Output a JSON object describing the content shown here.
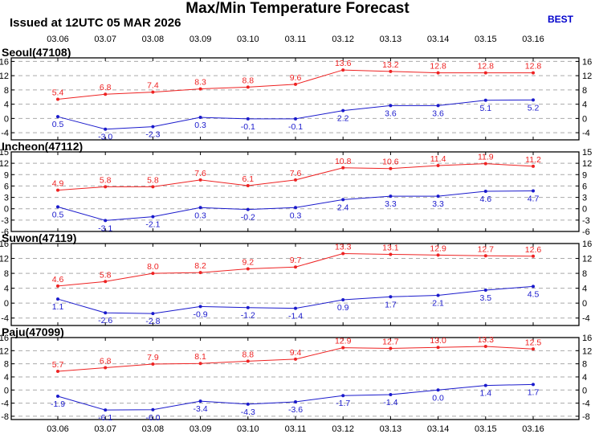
{
  "header": {
    "title": "Max/Min Temperature Forecast",
    "issued": "Issued at 12UTC 05 MAR 2026",
    "model": "BEST"
  },
  "colors": {
    "max": "#ee2222",
    "min": "#1a1acc",
    "grid": "#aaaaaa"
  },
  "chart_data": [
    {
      "type": "line",
      "title": "Seoul(47108)",
      "categories": [
        "03.06",
        "03.07",
        "03.08",
        "03.09",
        "03.10",
        "03.11",
        "03.12",
        "03.13",
        "03.14",
        "03.15",
        "03.16"
      ],
      "ylim": [
        -6,
        17
      ],
      "yticks": [
        16,
        12,
        8,
        4,
        0,
        -4
      ],
      "ytick_labels": [
        "16",
        "12",
        "8",
        "4",
        "0",
        "-4"
      ],
      "grid": true,
      "series": [
        {
          "values": [
            5.4,
            6.8,
            7.4,
            8.3,
            8.8,
            9.6,
            13.6,
            13.2,
            12.8,
            12.8,
            12.8
          ],
          "labels": [
            "5.4",
            "6.8",
            "7.4",
            "8.3",
            "8.8",
            "9.6",
            "13.6",
            "13.2",
            "12.8",
            "12.8",
            "12.8"
          ]
        },
        {
          "values": [
            0.5,
            -3.0,
            -2.3,
            0.3,
            -0.1,
            -0.1,
            2.2,
            3.6,
            3.6,
            5.1,
            5.2
          ],
          "labels": [
            "0.5",
            "-3.0",
            "-2.3",
            "0.3",
            "-0.1",
            "-0.1",
            "2.2",
            "3.6",
            "3.6",
            "5.1",
            "5.2"
          ]
        }
      ]
    },
    {
      "type": "line",
      "title": "Incheon(47112)",
      "categories": [
        "03.06",
        "03.07",
        "03.08",
        "03.09",
        "03.10",
        "03.11",
        "03.12",
        "03.13",
        "03.14",
        "03.15",
        "03.16"
      ],
      "ylim": [
        -6,
        15
      ],
      "yticks": [
        15,
        12,
        9,
        6,
        3,
        0,
        -3,
        -6
      ],
      "ytick_labels": [
        "15",
        "12",
        "9",
        "6",
        "3",
        "0",
        "-3",
        "-6"
      ],
      "grid": true,
      "series": [
        {
          "values": [
            4.9,
            5.8,
            5.8,
            7.6,
            6.1,
            7.6,
            10.8,
            10.6,
            11.4,
            11.9,
            11.2
          ],
          "labels": [
            "4.9",
            "5.8",
            "5.8",
            "7.6",
            "6.1",
            "7.6",
            "10.8",
            "10.6",
            "11.4",
            "11.9",
            "11.2"
          ]
        },
        {
          "values": [
            0.5,
            -3.1,
            -2.1,
            0.3,
            -0.2,
            0.3,
            2.4,
            3.3,
            3.3,
            4.6,
            4.7
          ],
          "labels": [
            "0.5",
            "-3.1",
            "-2.1",
            "0.3",
            "-0.2",
            "0.3",
            "2.4",
            "3.3",
            "3.3",
            "4.6",
            "4.7"
          ]
        }
      ]
    },
    {
      "type": "line",
      "title": "Suwon(47119)",
      "categories": [
        "03.06",
        "03.07",
        "03.08",
        "03.09",
        "03.10",
        "03.11",
        "03.12",
        "03.13",
        "03.14",
        "03.15",
        "03.16"
      ],
      "ylim": [
        -6,
        16
      ],
      "yticks": [
        16,
        12,
        8,
        4,
        0,
        -4
      ],
      "ytick_labels": [
        "16",
        "12",
        "8",
        "4",
        "0",
        "-4"
      ],
      "grid": true,
      "series": [
        {
          "values": [
            4.6,
            5.8,
            8.0,
            8.2,
            9.2,
            9.7,
            13.3,
            13.1,
            12.9,
            12.7,
            12.6
          ],
          "labels": [
            "4.6",
            "5.8",
            "8.0",
            "8.2",
            "9.2",
            "9.7",
            "13.3",
            "13.1",
            "12.9",
            "12.7",
            "12.6"
          ]
        },
        {
          "values": [
            1.1,
            -2.6,
            -2.8,
            -0.9,
            -1.2,
            -1.4,
            0.9,
            1.7,
            2.1,
            3.5,
            4.5
          ],
          "labels": [
            "1.1",
            "-2.6",
            "-2.8",
            "-0.9",
            "-1.2",
            "-1.4",
            "0.9",
            "1.7",
            "2.1",
            "3.5",
            "4.5"
          ]
        }
      ]
    },
    {
      "type": "line",
      "title": "Paju(47099)",
      "categories": [
        "03.06",
        "03.07",
        "03.08",
        "03.09",
        "03.10",
        "03.11",
        "03.12",
        "03.13",
        "03.14",
        "03.15",
        "03.16"
      ],
      "ylim": [
        -9,
        16
      ],
      "yticks": [
        16,
        12,
        8,
        4,
        0,
        -4,
        -8
      ],
      "ytick_labels": [
        "16",
        "12",
        "8",
        "4",
        "0",
        "-4",
        "-8"
      ],
      "grid": true,
      "series": [
        {
          "values": [
            5.7,
            6.8,
            7.9,
            8.1,
            8.8,
            9.4,
            12.9,
            12.7,
            13.0,
            13.3,
            12.5
          ],
          "labels": [
            "5.7",
            "6.8",
            "7.9",
            "8.1",
            "8.8",
            "9.4",
            "12.9",
            "12.7",
            "13.0",
            "13.3",
            "12.5"
          ]
        },
        {
          "values": [
            -1.9,
            -6.1,
            -6.0,
            -3.4,
            -4.3,
            -3.6,
            -1.7,
            -1.4,
            0.0,
            1.4,
            1.7
          ],
          "labels": [
            "-1.9",
            "-6.1",
            "-6.0",
            "-3.4",
            "-4.3",
            "-3.6",
            "-1.7",
            "-1.4",
            "0.0",
            "1.4",
            "1.7"
          ]
        }
      ]
    }
  ]
}
